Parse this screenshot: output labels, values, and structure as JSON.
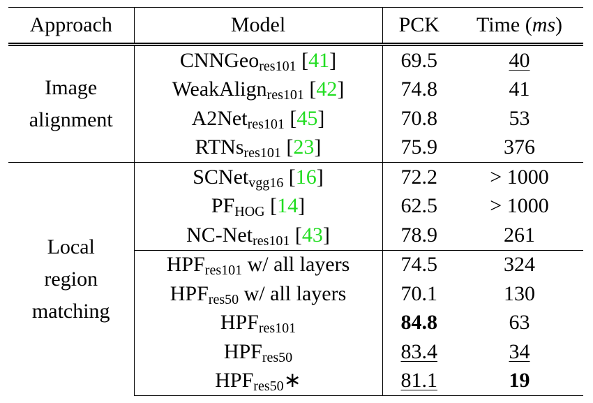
{
  "table": {
    "header": [
      [
        {
          "text": "Approach"
        }
      ],
      [
        {
          "text": "Model"
        }
      ],
      [
        {
          "text": "PCK"
        }
      ],
      [
        {
          "text": "Time ("
        },
        {
          "text": "ms",
          "style": "italic"
        },
        {
          "text": ")"
        }
      ]
    ],
    "groups": [
      {
        "label": [
          "Image",
          "alignment"
        ],
        "subgroups": [
          [
            {
              "model": [
                {
                  "text": "CNNGeo"
                },
                {
                  "text": "res101",
                  "style": "sub"
                },
                {
                  "text": " ["
                },
                {
                  "text": "41",
                  "style": "cite"
                },
                {
                  "text": "]"
                }
              ],
              "pck": 69.5,
              "time": 40,
              "time_style": "underline"
            },
            {
              "model": [
                {
                  "text": "WeakAlign"
                },
                {
                  "text": "res101",
                  "style": "sub"
                },
                {
                  "text": " ["
                },
                {
                  "text": "42",
                  "style": "cite"
                },
                {
                  "text": "]"
                }
              ],
              "pck": 74.8,
              "time": 41
            },
            {
              "model": [
                {
                  "text": "A2Net"
                },
                {
                  "text": "res101",
                  "style": "sub"
                },
                {
                  "text": " ["
                },
                {
                  "text": "45",
                  "style": "cite"
                },
                {
                  "text": "]"
                }
              ],
              "pck": 70.8,
              "time": 53
            },
            {
              "model": [
                {
                  "text": "RTNs"
                },
                {
                  "text": "res101",
                  "style": "sub"
                },
                {
                  "text": " ["
                },
                {
                  "text": "23",
                  "style": "cite"
                },
                {
                  "text": "]"
                }
              ],
              "pck": 75.9,
              "time": 376
            }
          ]
        ]
      },
      {
        "label": [
          "Local",
          "region",
          "matching"
        ],
        "subgroups": [
          [
            {
              "model": [
                {
                  "text": "SCNet"
                },
                {
                  "text": "vgg16",
                  "style": "sub"
                },
                {
                  "text": " ["
                },
                {
                  "text": "16",
                  "style": "cite"
                },
                {
                  "text": "]"
                }
              ],
              "pck": 72.2,
              "time": "> 1000"
            },
            {
              "model": [
                {
                  "text": "PF"
                },
                {
                  "text": "HOG",
                  "style": "sub"
                },
                {
                  "text": " ["
                },
                {
                  "text": "14",
                  "style": "cite"
                },
                {
                  "text": "]"
                }
              ],
              "pck": 62.5,
              "time": "> 1000"
            },
            {
              "model": [
                {
                  "text": "NC-Net"
                },
                {
                  "text": "res101",
                  "style": "sub"
                },
                {
                  "text": " ["
                },
                {
                  "text": "43",
                  "style": "cite"
                },
                {
                  "text": "]"
                }
              ],
              "pck": 78.9,
              "time": 261
            }
          ],
          [
            {
              "model": [
                {
                  "text": "HPF"
                },
                {
                  "text": "res101",
                  "style": "sub"
                },
                {
                  "text": " w/ all layers"
                }
              ],
              "pck": 74.5,
              "time": 324
            },
            {
              "model": [
                {
                  "text": "HPF"
                },
                {
                  "text": "res50",
                  "style": "sub"
                },
                {
                  "text": " w/ all layers"
                }
              ],
              "pck": 70.1,
              "time": 130
            },
            {
              "model": [
                {
                  "text": "HPF"
                },
                {
                  "text": "res101",
                  "style": "sub"
                }
              ],
              "pck": 84.8,
              "pck_style": "bold",
              "time": 63
            },
            {
              "model": [
                {
                  "text": "HPF"
                },
                {
                  "text": "res50",
                  "style": "sub"
                }
              ],
              "pck": 83.4,
              "pck_style": "underline",
              "time": 34,
              "time_style": "underline"
            },
            {
              "model": [
                {
                  "text": "HPF"
                },
                {
                  "text": "res50",
                  "style": "sub"
                },
                {
                  "text": "∗"
                }
              ],
              "pck": 81.1,
              "pck_style": "underline",
              "time": 19,
              "time_style": "bold"
            }
          ]
        ]
      }
    ]
  }
}
